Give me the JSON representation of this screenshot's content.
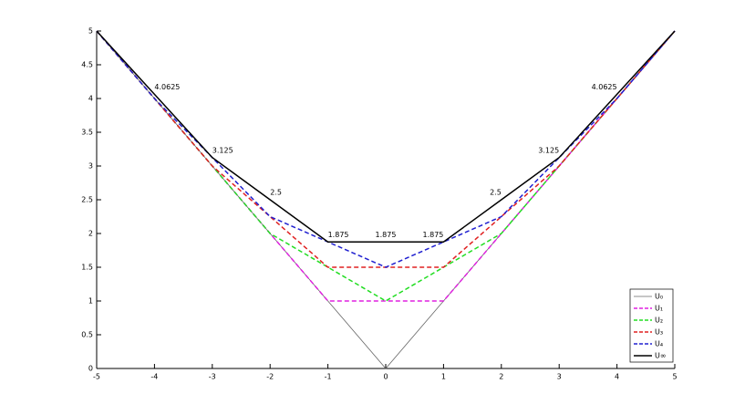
{
  "chart_data": {
    "type": "line",
    "x": [
      -5,
      -4,
      -3,
      -2,
      -1,
      0,
      1,
      2,
      3,
      4,
      5
    ],
    "series": [
      {
        "name": "U₀",
        "color": "#666666",
        "linestyle": "solid",
        "values": [
          5,
          4,
          3,
          2,
          1,
          0,
          1,
          2,
          3,
          4,
          5
        ]
      },
      {
        "name": "U₁",
        "color": "#e020e0",
        "linestyle": "dashed",
        "values": [
          5,
          4,
          3,
          2,
          1,
          1,
          1,
          2,
          3,
          4,
          5
        ]
      },
      {
        "name": "U₂",
        "color": "#22dd22",
        "linestyle": "dashed",
        "values": [
          5,
          4,
          3,
          2,
          1.5,
          1,
          1.5,
          2,
          3,
          4,
          5
        ]
      },
      {
        "name": "U₃",
        "color": "#e02020",
        "linestyle": "dashed",
        "values": [
          5,
          4,
          3,
          2.25,
          1.5,
          1.5,
          1.5,
          2.25,
          3,
          4,
          5
        ]
      },
      {
        "name": "U₄",
        "color": "#2020d0",
        "linestyle": "dashed",
        "values": [
          5,
          4,
          3.125,
          2.25,
          1.875,
          1.5,
          1.875,
          2.25,
          3.125,
          4,
          5
        ]
      },
      {
        "name": "U∞",
        "color": "#000000",
        "linestyle": "solid",
        "values": [
          5,
          4.0625,
          3.125,
          2.5,
          1.875,
          1.875,
          1.875,
          2.5,
          3.125,
          4.0625,
          5
        ]
      }
    ],
    "labeled_series": 5,
    "xlim": [
      -5,
      5
    ],
    "xticks": [
      -5,
      -4,
      -3,
      -2,
      -1,
      0,
      1,
      2,
      3,
      4,
      5
    ],
    "ylim": [
      0,
      5
    ],
    "yticks": [
      0,
      0.5,
      1,
      1.5,
      2,
      2.5,
      3,
      3.5,
      4,
      4.5,
      5
    ],
    "grid": false,
    "legend": "lower right"
  }
}
